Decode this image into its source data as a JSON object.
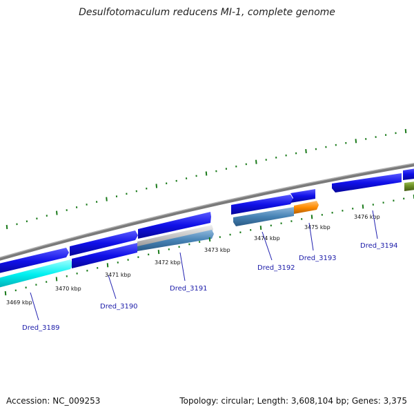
{
  "title": "Desulfotomaculum reducens MI-1, complete genome",
  "footer": {
    "accession": "Accession: NC_009253",
    "topology": "Topology: circular; Length: 3,608,104 bp; Genes: 3,375"
  },
  "ruler": [
    "3469 kbp",
    "3470 kbp",
    "3471 kbp",
    "3472 kbp",
    "3473 kbp",
    "3474 kbp",
    "3475 kbp",
    "3476 kbp"
  ],
  "genes": [
    "Dred_3189",
    "Dred_3190",
    "Dred_3191",
    "Dred_3192",
    "Dred_3193",
    "Dred_3194"
  ],
  "colors": {
    "backbone": "#808080",
    "forward_gene": "#1010e8",
    "highlight_cyan": "#00f0f0",
    "steel_blue": "#4682b4",
    "orange": "#ff8c00",
    "gray_gene": "#b8b8b8",
    "olive": "#6b8e23",
    "tick": "#1a7a1a",
    "label": "#1a1aa8"
  }
}
